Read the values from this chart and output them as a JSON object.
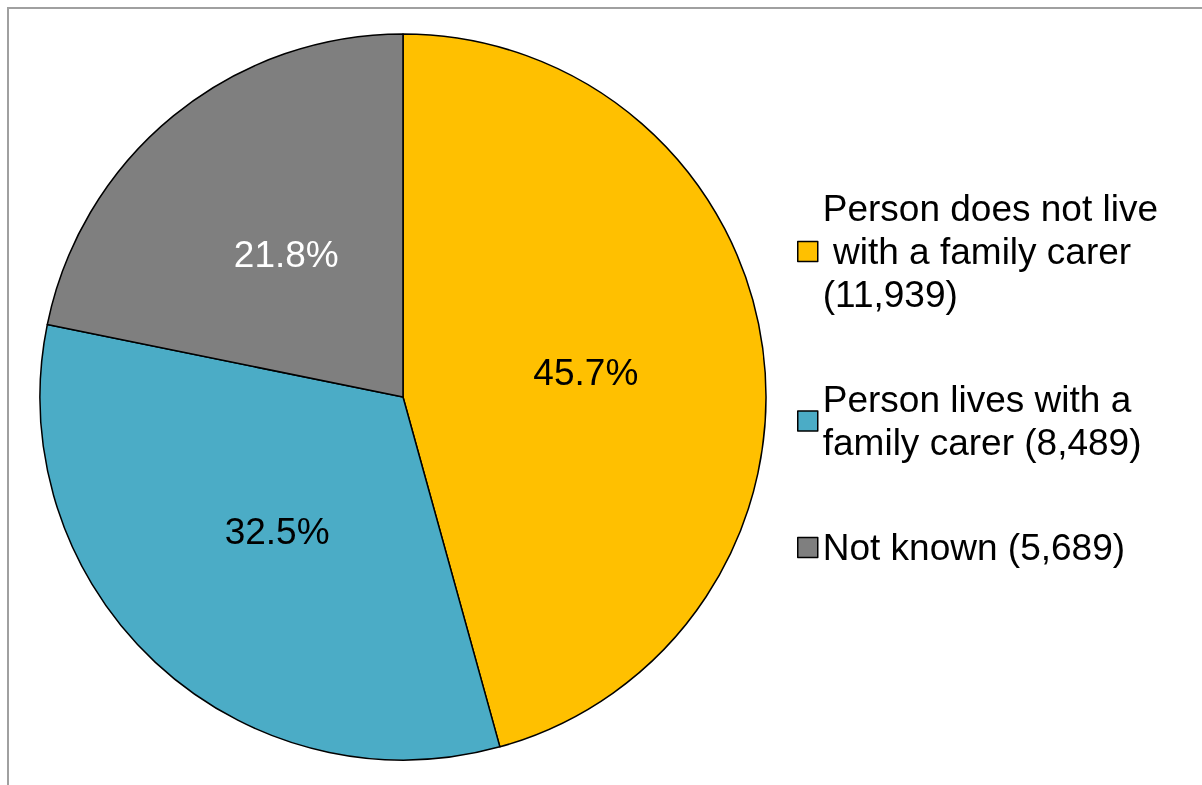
{
  "chart_data": {
    "type": "pie",
    "categories": [
      "Person does not live with a family carer (11,939)",
      "Person lives with a family carer (8,489)",
      "Not known (5,689)"
    ],
    "values": [
      45.7,
      32.5,
      21.8
    ],
    "value_labels": [
      "45.7%",
      "32.5%",
      "21.8%"
    ],
    "colors": [
      "#ffc000",
      "#4bacc6",
      "#7f7f7f"
    ],
    "legend": "right"
  }
}
